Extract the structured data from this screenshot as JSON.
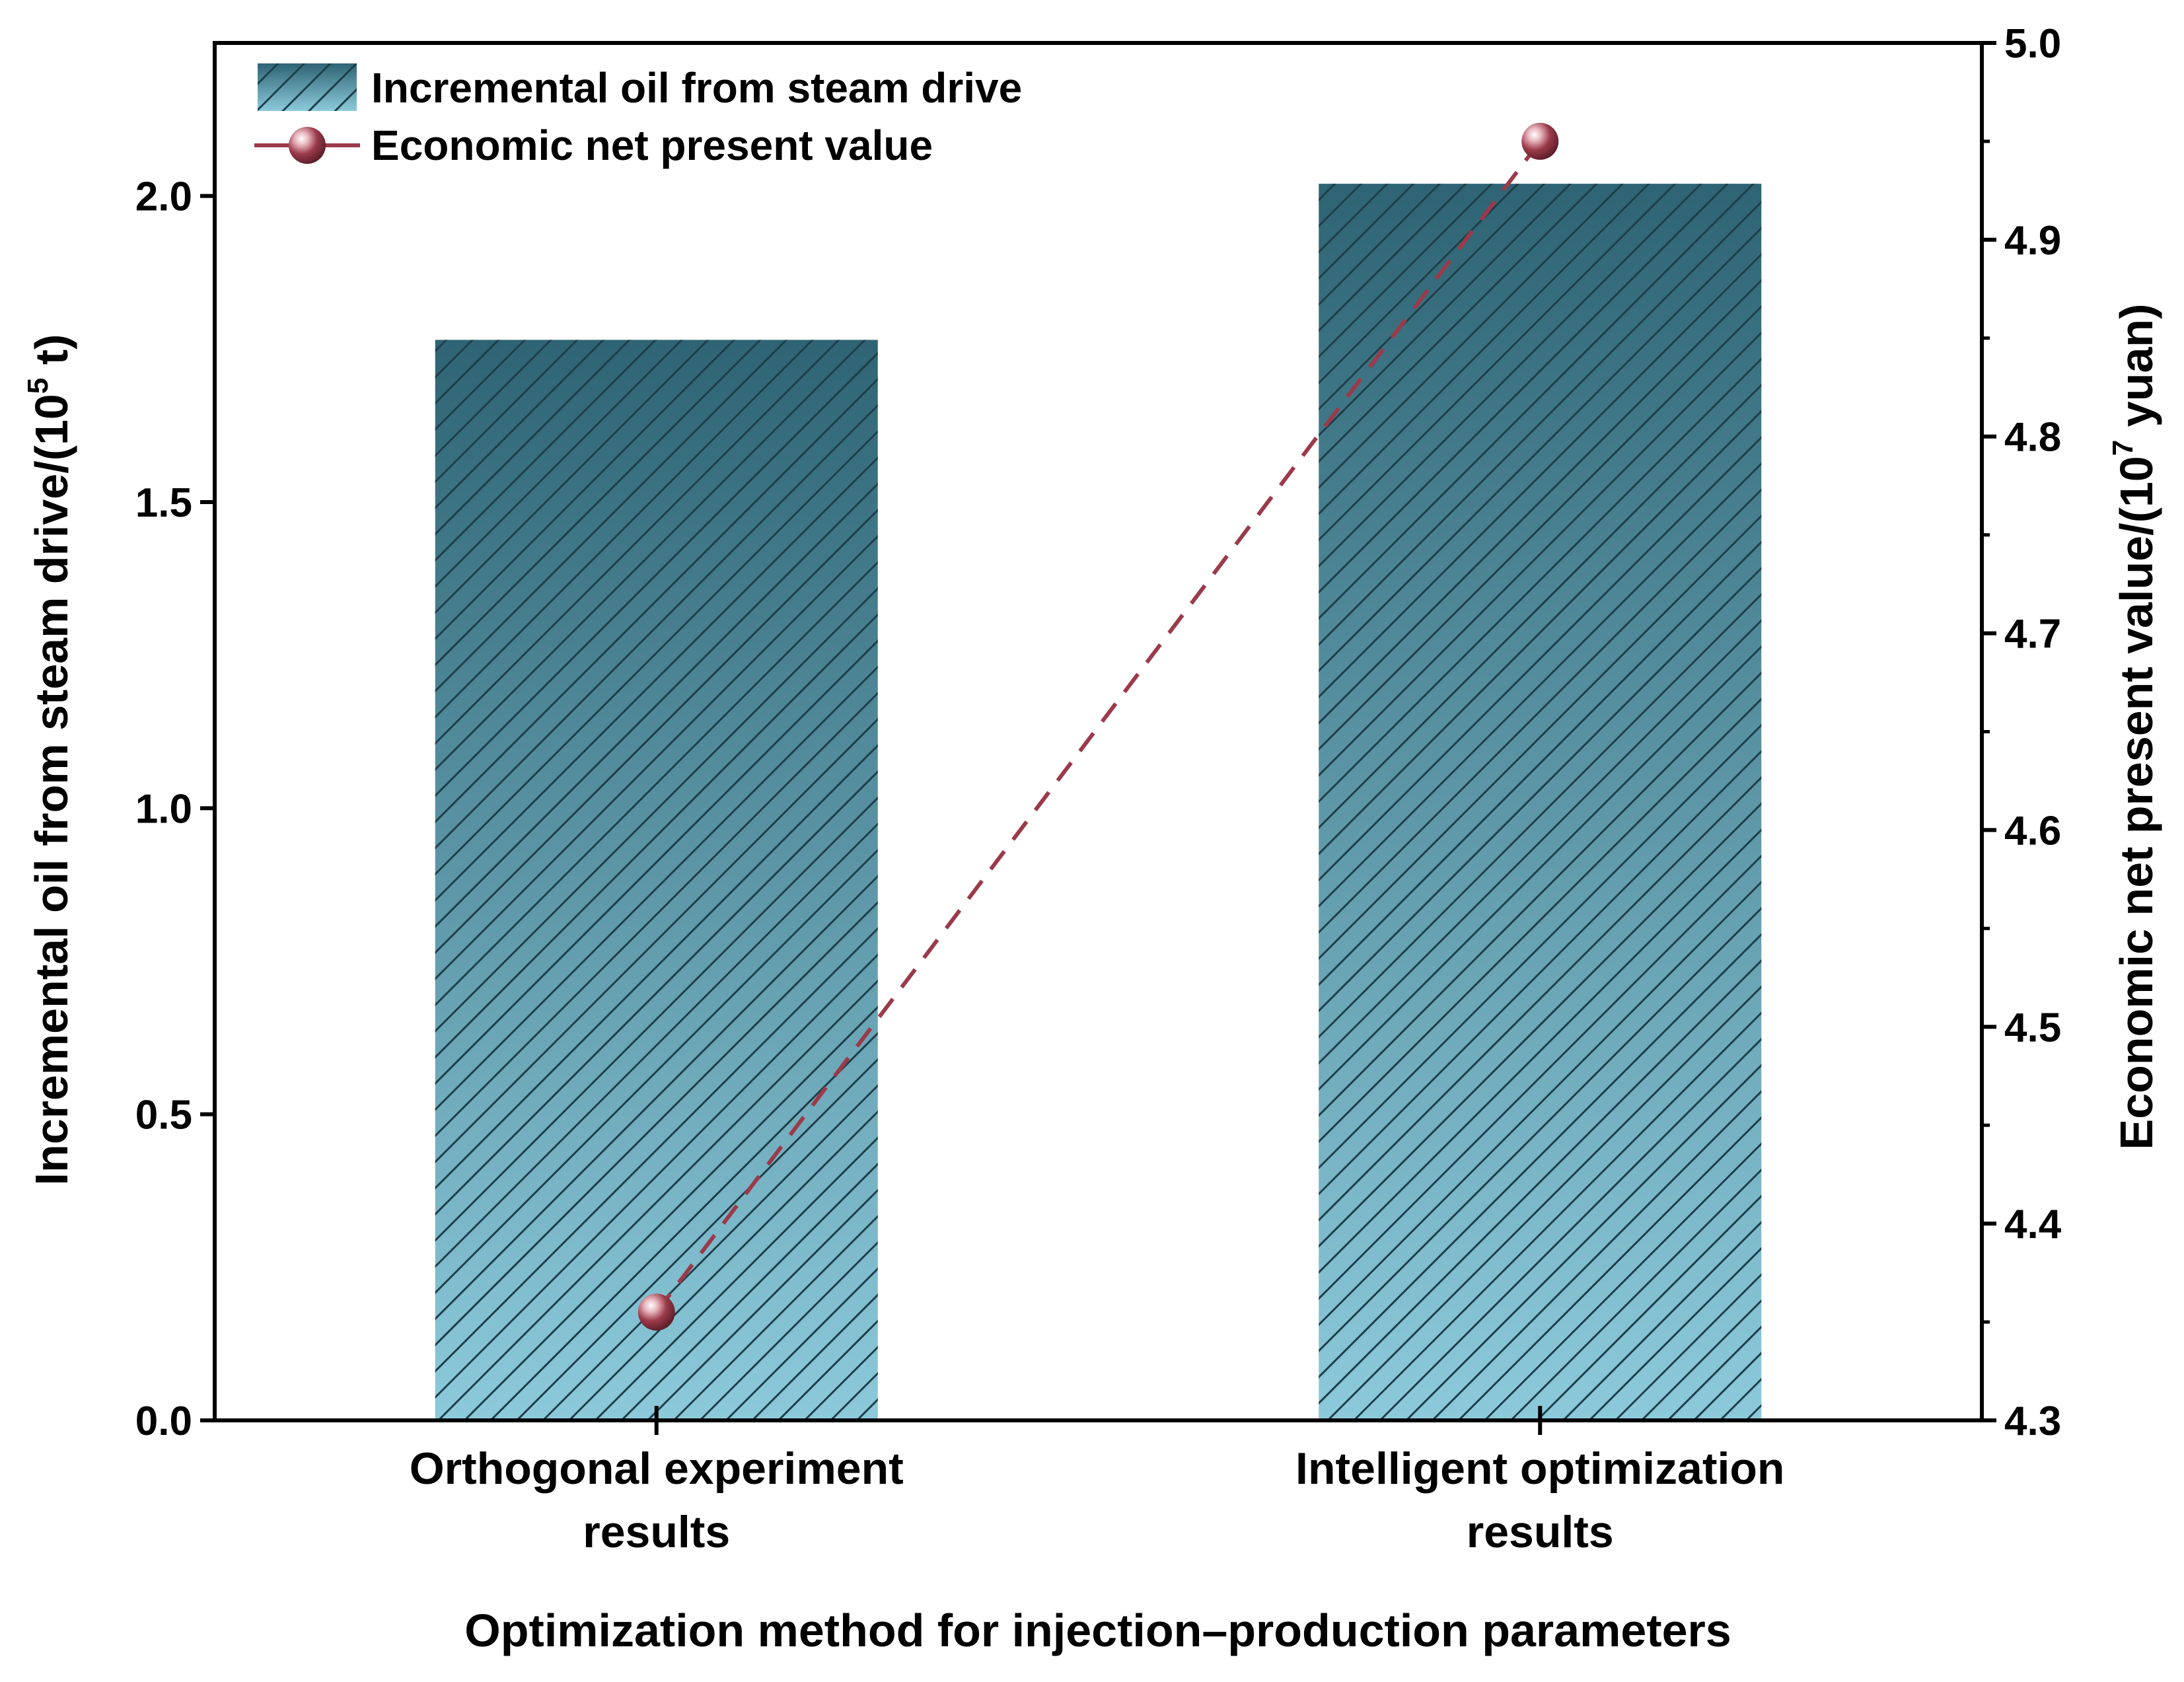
{
  "chart_data": {
    "type": "bar",
    "categories": [
      "Orthogonal experiment results",
      "Intelligent optimization results"
    ],
    "category_lines": [
      [
        "Orthogonal experiment",
        "results"
      ],
      [
        "Intelligent optimization",
        "results"
      ]
    ],
    "series": [
      {
        "name": "Incremental oil from steam drive",
        "type": "bar",
        "axis": "left",
        "values": [
          1.765,
          2.02
        ],
        "color_top": "#2e6473",
        "color_bottom": "#8ccadb",
        "hatch_color": "#1e3f4a"
      },
      {
        "name": "Economic net present value",
        "type": "line",
        "axis": "right",
        "values": [
          4.355,
          4.95
        ],
        "color": "#9b3a4a",
        "line_style": "dashed",
        "marker": "sphere"
      }
    ],
    "xlabel": "Optimization method for injection–production parameters",
    "ylabel_left": {
      "main": "Incremental oil from steam drive/(10",
      "sup": "5",
      "end": " t)"
    },
    "ylabel_right": {
      "main": "Economic net present value/(10",
      "sup": "7",
      "end": " yuan)"
    },
    "ylim_left": [
      0,
      2.25
    ],
    "yticks_left": [
      "0.0",
      "0.5",
      "1.0",
      "1.5",
      "2.0"
    ],
    "ylim_right": [
      4.3,
      5.0
    ],
    "yticks_right": [
      "4.3",
      "4.4",
      "4.5",
      "4.6",
      "4.7",
      "4.8",
      "4.9",
      "5.0"
    ],
    "legend_position": "top-left",
    "grid": false
  }
}
